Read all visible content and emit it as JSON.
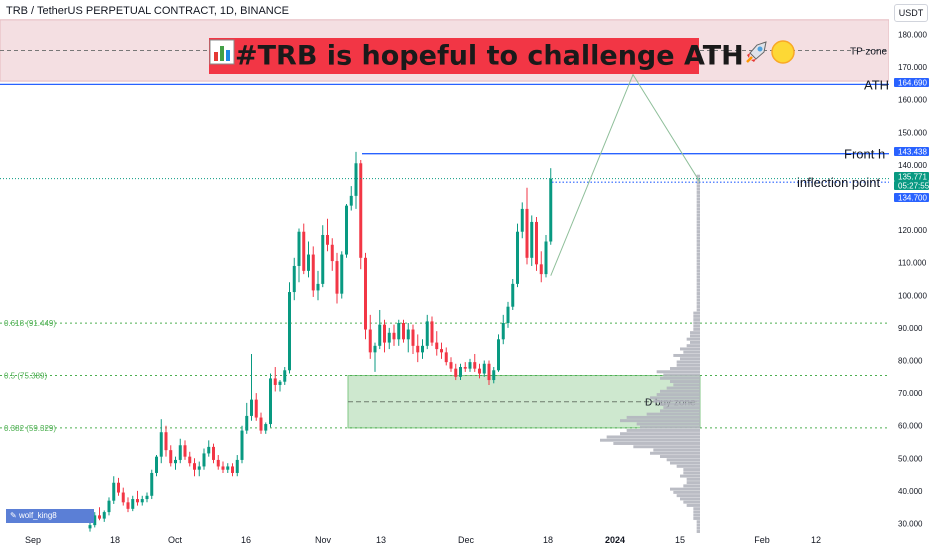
{
  "header": {
    "symbol_line": "TRB / TetherUS PERPETUAL CONTRACT, 1D, BINANCE",
    "currency": "USDT"
  },
  "title_banner": {
    "text": "#TRB is hopeful to challenge ATH",
    "icons": [
      "bar-chart-emoji",
      "rocket-emoji",
      "yellow-circle-emoji"
    ],
    "color": "#f23645"
  },
  "watermark": "wolf_king8",
  "annotations": {
    "tp_zone": "TP zone",
    "ath": "ATH",
    "front_high": "Front h",
    "inflection": "inflection point",
    "buy_zone": "D buy zone"
  },
  "chart_data": {
    "type": "candlestick",
    "x_tick_labels": [
      "Sep",
      "18",
      "Oct",
      "16",
      "Nov",
      "13",
      "Dec",
      "18",
      "2024",
      "15",
      "Feb",
      "12"
    ],
    "y_tick_labels": [
      "30.000",
      "40.000",
      "50.000",
      "60.000",
      "70.000",
      "80.000",
      "90.000",
      "100.000",
      "110.000",
      "120.000",
      "130.000",
      "140.000",
      "150.000",
      "160.000",
      "170.000",
      "180.000"
    ],
    "ylim": [
      27,
      185
    ],
    "price_labels": [
      {
        "text": "164.690",
        "value": 164.69,
        "color": "#2962ff"
      },
      {
        "text": "143.438",
        "value": 143.438,
        "color": "#2962ff"
      },
      {
        "text": "135.771",
        "value": 135.771,
        "color": "#089981"
      },
      {
        "text": "05:27:55",
        "value": 135.771,
        "color": "#089981"
      },
      {
        "text": "134.700",
        "value": 134.7,
        "color": "#2962ff"
      }
    ],
    "fib_levels": [
      {
        "label": "0.618 (91.449)",
        "value": 91.449
      },
      {
        "label": "0.5 (75.389)",
        "value": 75.389
      },
      {
        "label": "0.382 (59.329)",
        "value": 59.329
      }
    ],
    "levels": {
      "ath": 164.69,
      "front_high": 143.438,
      "inflection": 134.7,
      "tp_zone": [
        165.7,
        184.5
      ],
      "buy_zone": [
        59.329,
        75.389
      ]
    },
    "candles": [
      [
        28.5,
        30.5,
        27.5,
        29.5
      ],
      [
        29.5,
        33.5,
        28.8,
        32.5
      ],
      [
        32.5,
        35,
        31,
        31.5
      ],
      [
        31.5,
        34,
        30.5,
        33.5
      ],
      [
        33.5,
        38,
        32.5,
        37
      ],
      [
        37,
        44.5,
        36,
        42.5
      ],
      [
        42.5,
        44,
        38.5,
        39.5
      ],
      [
        39.5,
        41,
        35.5,
        36.5
      ],
      [
        36.5,
        38,
        33.5,
        34.5
      ],
      [
        34.5,
        38.5,
        33.8,
        37.5
      ],
      [
        37.5,
        40,
        35.5,
        36.5
      ],
      [
        36.5,
        38.5,
        35.5,
        37.5
      ],
      [
        37.5,
        39.5,
        36.5,
        38.5
      ],
      [
        38.5,
        46.5,
        37.5,
        45.5
      ],
      [
        45.5,
        51,
        44.5,
        50.5
      ],
      [
        50.5,
        62,
        48.5,
        58
      ],
      [
        58,
        60,
        50.5,
        52.5
      ],
      [
        52.5,
        54,
        47.5,
        48.5
      ],
      [
        48.5,
        50.5,
        46.5,
        49.5
      ],
      [
        49.5,
        56,
        48.5,
        54
      ],
      [
        54,
        55.5,
        49.5,
        50.5
      ],
      [
        50.5,
        52,
        47.5,
        48.5
      ],
      [
        48.5,
        50,
        44.5,
        46.5
      ],
      [
        46.5,
        49,
        44.5,
        47.5
      ],
      [
        47.5,
        53,
        46.5,
        51.5
      ],
      [
        51.5,
        55.5,
        50.5,
        53.5
      ],
      [
        53.5,
        54.5,
        48.5,
        49.5
      ],
      [
        49.5,
        51,
        46.5,
        47.5
      ],
      [
        47.5,
        49,
        45.5,
        46.5
      ],
      [
        46.5,
        48.5,
        45.5,
        47.5
      ],
      [
        47.5,
        48.5,
        44.5,
        45.5
      ],
      [
        45.5,
        51,
        44.5,
        49.5
      ],
      [
        49.5,
        60,
        48.5,
        58.5
      ],
      [
        58.5,
        67,
        57.5,
        63
      ],
      [
        63,
        82,
        61.5,
        68
      ],
      [
        68,
        70,
        61.5,
        62.5
      ],
      [
        62.5,
        64,
        57.5,
        58.5
      ],
      [
        58.5,
        61,
        57.5,
        60.5
      ],
      [
        60.5,
        76,
        59.5,
        74.5
      ],
      [
        74.5,
        78,
        70.5,
        72.5
      ],
      [
        72.5,
        74,
        70.5,
        73.5
      ],
      [
        73.5,
        78,
        72.5,
        77
      ],
      [
        77,
        104,
        76,
        101
      ],
      [
        101,
        111.5,
        98.5,
        109
      ],
      [
        109,
        120.5,
        104,
        119.5
      ],
      [
        119.5,
        122,
        106.5,
        107.5
      ],
      [
        107.5,
        116.5,
        105.5,
        112.5
      ],
      [
        112.5,
        115,
        99.5,
        101.5
      ],
      [
        101.5,
        107.5,
        98.5,
        103.5
      ],
      [
        103.5,
        121.5,
        102.5,
        118.5
      ],
      [
        118.5,
        123.5,
        113.5,
        115.5
      ],
      [
        115.5,
        117.5,
        107.5,
        110.5
      ],
      [
        110.5,
        113,
        97.5,
        100.5
      ],
      [
        100.5,
        113.5,
        99,
        112.5
      ],
      [
        112.5,
        128,
        111.5,
        127.5
      ],
      [
        127.5,
        133.5,
        126,
        130.5
      ],
      [
        130.5,
        144,
        126.5,
        140.5
      ],
      [
        140.5,
        141.5,
        108,
        111.5
      ],
      [
        111.5,
        113,
        86.5,
        89.5
      ],
      [
        89.5,
        94,
        80.5,
        82.5
      ],
      [
        82.5,
        85.5,
        76.5,
        84.5
      ],
      [
        84.5,
        95.5,
        83.5,
        91
      ],
      [
        91,
        92.5,
        82.5,
        85.5
      ],
      [
        85.5,
        90,
        83.5,
        88.5
      ],
      [
        88.5,
        91,
        84.5,
        86.5
      ],
      [
        86.5,
        92.5,
        84.5,
        91.5
      ],
      [
        91.5,
        92.5,
        85.5,
        86.5
      ],
      [
        86.5,
        91.5,
        82.5,
        89.5
      ],
      [
        89.5,
        91,
        82,
        84.5
      ],
      [
        84.5,
        88,
        79.5,
        82.5
      ],
      [
        82.5,
        86.5,
        80.5,
        84.5
      ],
      [
        84.5,
        94,
        83.5,
        92
      ],
      [
        92,
        93.5,
        84.5,
        85.5
      ],
      [
        85.5,
        89,
        81.5,
        83.5
      ],
      [
        83.5,
        85.5,
        80.5,
        82.5
      ],
      [
        82.5,
        84,
        78.5,
        79.5
      ],
      [
        79.5,
        81,
        76.5,
        77.5
      ],
      [
        77.5,
        79,
        74,
        75
      ],
      [
        75,
        79,
        74,
        78
      ],
      [
        78,
        79.5,
        76.5,
        77.5
      ],
      [
        77.5,
        80.5,
        76.5,
        79.5
      ],
      [
        79.5,
        82,
        76.5,
        77.5
      ],
      [
        77.5,
        79,
        74.5,
        76
      ],
      [
        76,
        80,
        75,
        79
      ],
      [
        79,
        80,
        72.5,
        74
      ],
      [
        74,
        78,
        73,
        77
      ],
      [
        77,
        88,
        76.5,
        86.5
      ],
      [
        86.5,
        94,
        85,
        91.5
      ],
      [
        91.5,
        98,
        90,
        96.5
      ],
      [
        96.5,
        105,
        95.5,
        103.5
      ],
      [
        103.5,
        122,
        102.5,
        119.5
      ],
      [
        119.5,
        128.5,
        117.5,
        126.5
      ],
      [
        126.5,
        133,
        109.5,
        111.5
      ],
      [
        111.5,
        124.5,
        109,
        122.5
      ],
      [
        122.5,
        124,
        107.5,
        109.5
      ],
      [
        109.5,
        113.5,
        104,
        106.5
      ],
      [
        106.5,
        118.5,
        105.5,
        116.5
      ],
      [
        116.5,
        139,
        115.5,
        135.771
      ]
    ],
    "volume_profile": [
      1,
      1,
      1,
      1,
      2,
      2,
      2,
      2,
      4,
      5,
      6,
      7,
      8,
      9,
      5,
      4,
      4,
      6,
      5,
      5,
      7,
      9,
      10,
      12,
      15,
      14,
      20,
      26,
      30,
      28,
      24,
      22,
      18,
      19,
      24,
      22,
      16,
      12,
      11,
      12,
      14,
      15,
      13,
      12,
      10,
      8,
      9,
      12,
      11,
      13,
      9,
      7,
      7,
      6,
      8,
      5,
      6,
      4,
      3,
      4,
      3,
      3,
      2,
      2,
      2,
      2,
      2,
      2,
      1,
      1,
      1,
      1,
      1,
      1,
      1,
      1,
      1,
      1,
      1,
      1,
      1,
      1,
      1,
      1,
      1,
      1,
      1,
      1,
      1,
      1,
      1,
      1,
      1,
      1,
      1,
      1,
      1,
      1,
      1,
      1,
      1,
      1,
      1,
      1,
      1,
      1,
      1,
      1,
      1,
      1
    ],
    "colors": {
      "up": "#089981",
      "down": "#f23645",
      "blue": "#2962ff",
      "fib": "#4caf50",
      "zone_fill": "#a5d6a7",
      "tp_fill": "#f4dfe2"
    }
  }
}
